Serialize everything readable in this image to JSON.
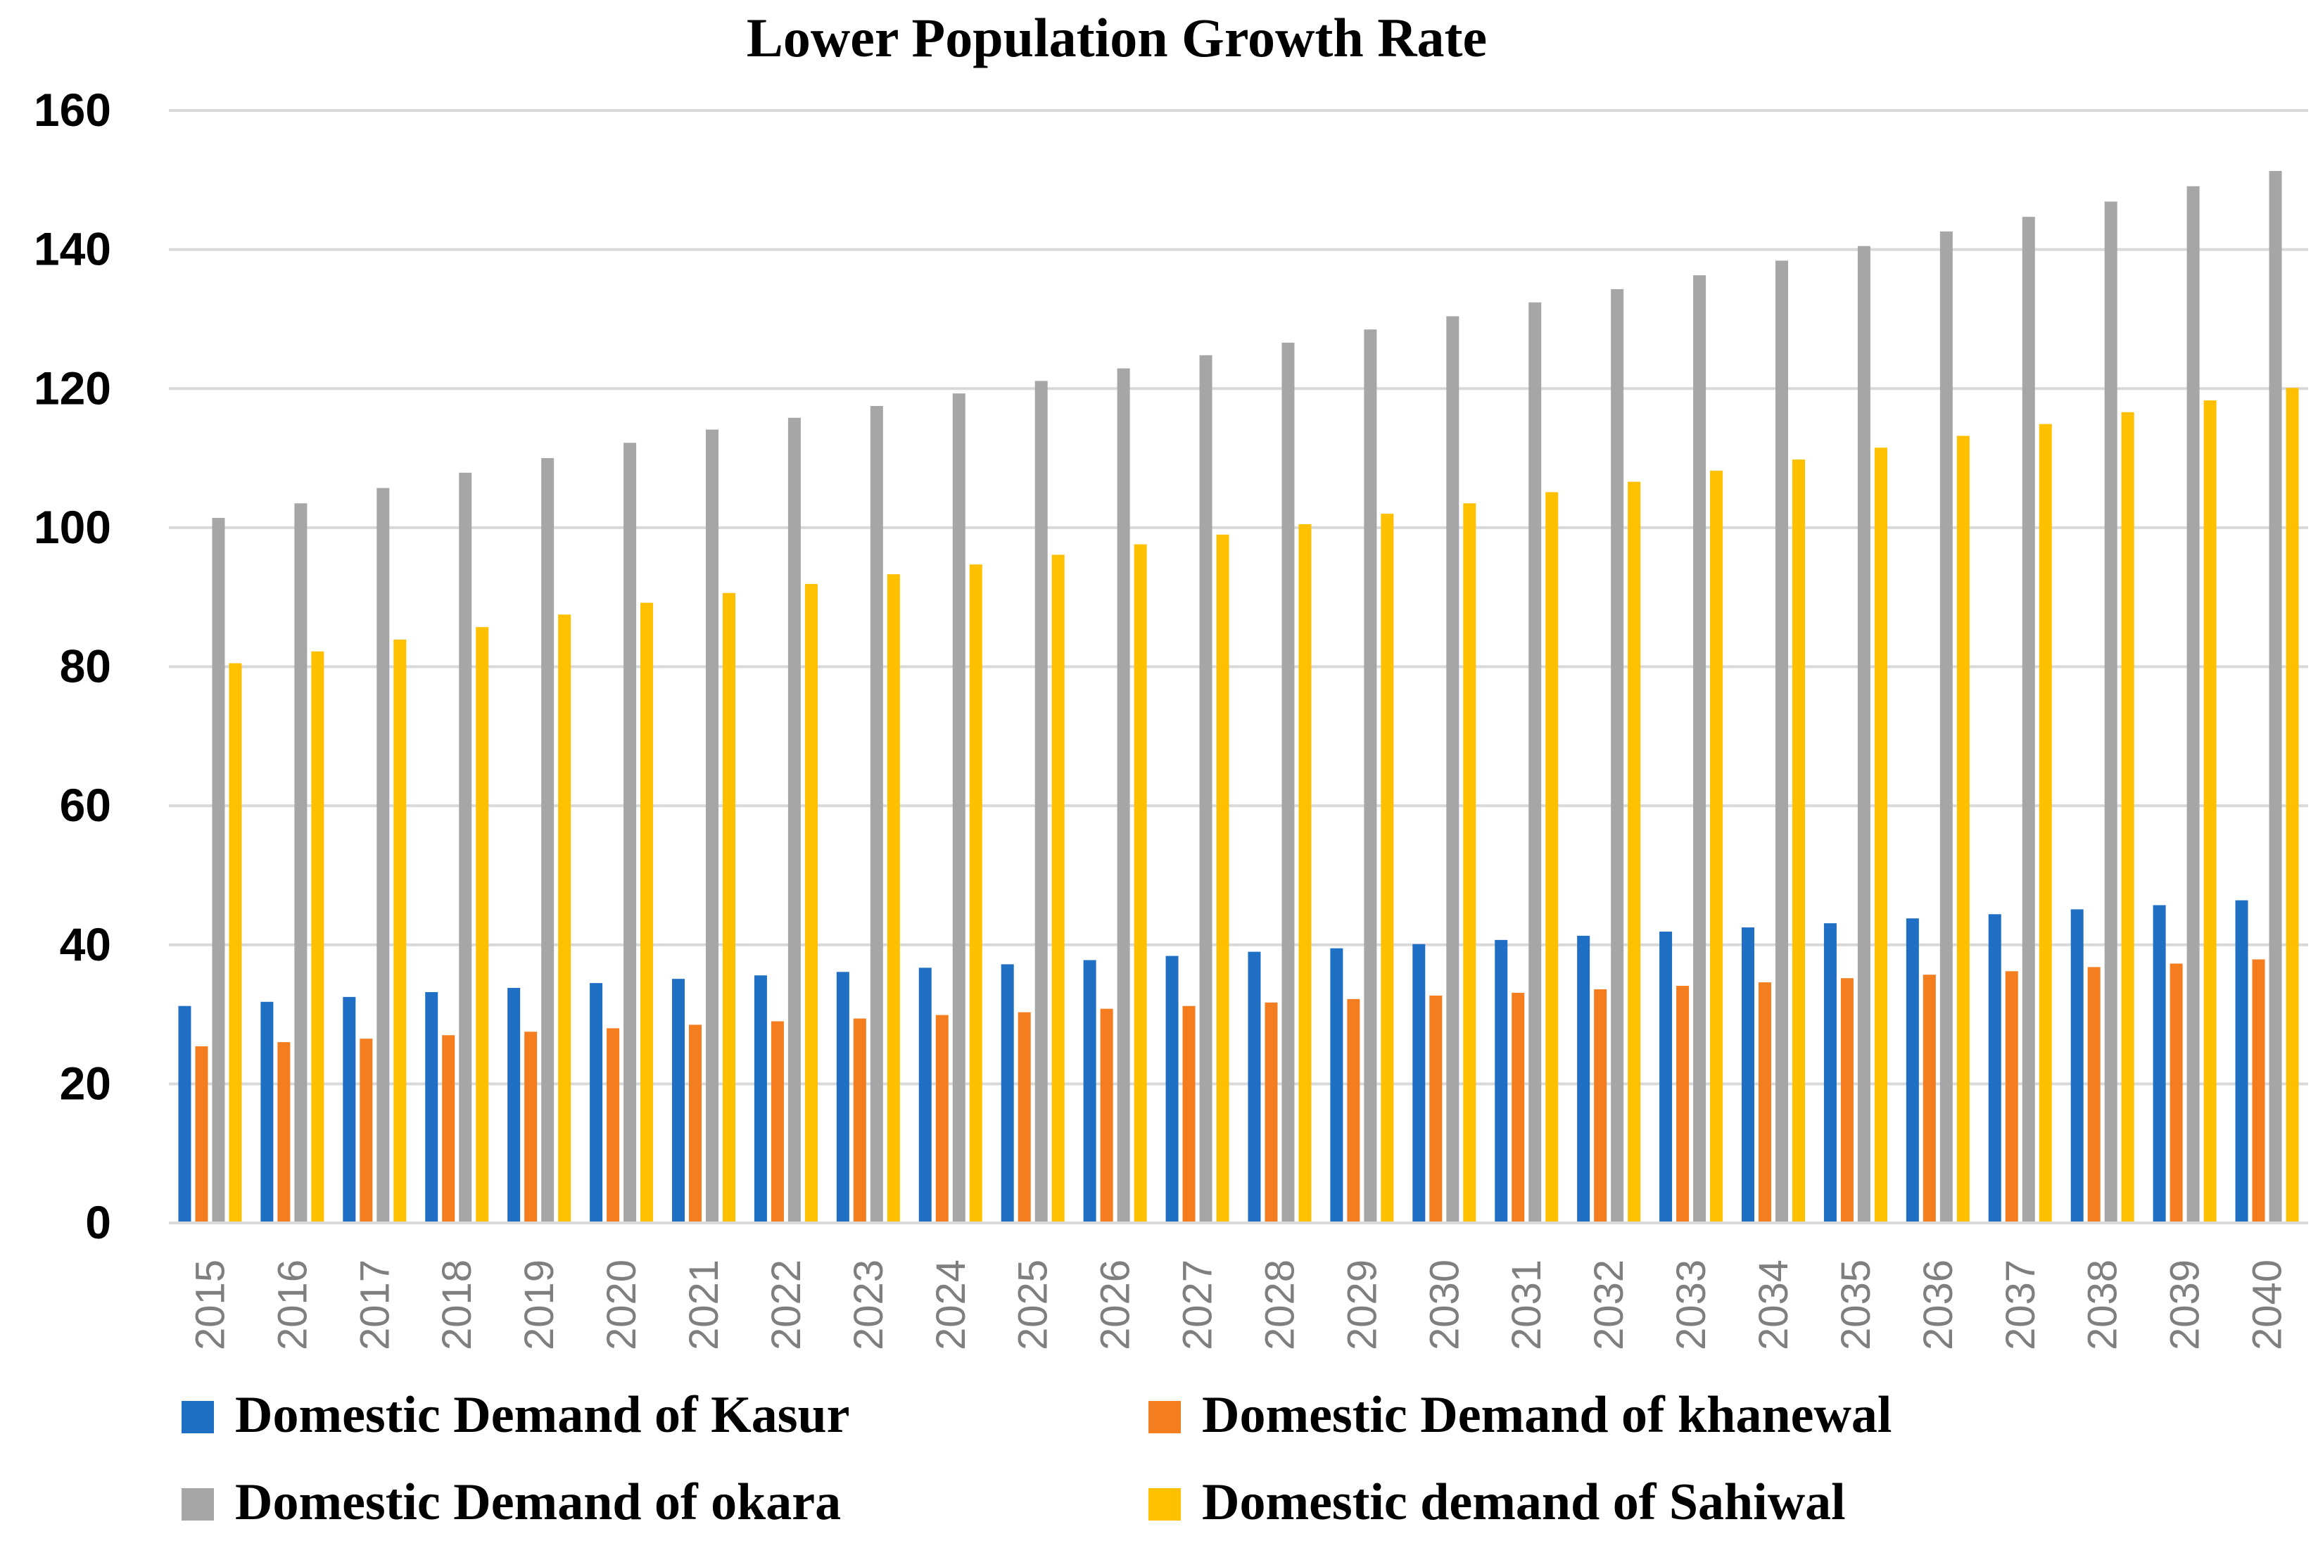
{
  "chart_data": {
    "type": "bar",
    "title": "Lower Population Growth Rate",
    "xlabel": "",
    "ylabel": "",
    "ylim": [
      0,
      160
    ],
    "yticks": [
      "0",
      "20",
      "40",
      "60",
      "80",
      "100",
      "120",
      "140",
      "160"
    ],
    "grid": true,
    "legend_position": "bottom",
    "categories": [
      "2015",
      "2016",
      "2017",
      "2018",
      "2019",
      "2020",
      "2021",
      "2022",
      "2023",
      "2024",
      "2025",
      "2026",
      "2027",
      "2028",
      "2029",
      "2030",
      "2031",
      "2032",
      "2033",
      "2034",
      "2035",
      "2036",
      "2037",
      "2038",
      "2039",
      "2040"
    ],
    "series": [
      {
        "name": "Domestic Demand of Kasur",
        "color": "#1f6fc5",
        "values": [
          31.2,
          31.8,
          32.5,
          33.2,
          33.8,
          34.5,
          35.1,
          35.6,
          36.1,
          36.7,
          37.2,
          37.8,
          38.4,
          39.0,
          39.5,
          40.1,
          40.7,
          41.3,
          41.9,
          42.5,
          43.1,
          43.8,
          44.4,
          45.1,
          45.7,
          46.4
        ]
      },
      {
        "name": "Domestic Demand of khanewal",
        "color": "#f47d1f",
        "values": [
          25.4,
          26.0,
          26.5,
          27.0,
          27.5,
          28.0,
          28.5,
          29.0,
          29.4,
          29.9,
          30.3,
          30.8,
          31.2,
          31.7,
          32.2,
          32.7,
          33.1,
          33.6,
          34.1,
          34.6,
          35.2,
          35.7,
          36.2,
          36.8,
          37.3,
          37.9
        ]
      },
      {
        "name": "Domestic Demand of okara",
        "color": "#a6a6a6",
        "values": [
          101.4,
          103.5,
          105.7,
          107.9,
          110.0,
          112.2,
          114.1,
          115.8,
          117.5,
          119.3,
          121.1,
          122.9,
          124.8,
          126.6,
          128.5,
          130.4,
          132.4,
          134.3,
          136.3,
          138.4,
          140.5,
          142.6,
          144.7,
          146.9,
          149.1,
          151.3
        ]
      },
      {
        "name": "Domestic demand of Sahiwal",
        "color": "#ffc000",
        "values": [
          80.5,
          82.2,
          83.9,
          85.7,
          87.5,
          89.2,
          90.6,
          91.9,
          93.3,
          94.7,
          96.1,
          97.6,
          99.0,
          100.5,
          102.0,
          103.5,
          105.1,
          106.6,
          108.2,
          109.8,
          111.5,
          113.2,
          114.9,
          116.6,
          118.3,
          120.1
        ]
      }
    ]
  }
}
